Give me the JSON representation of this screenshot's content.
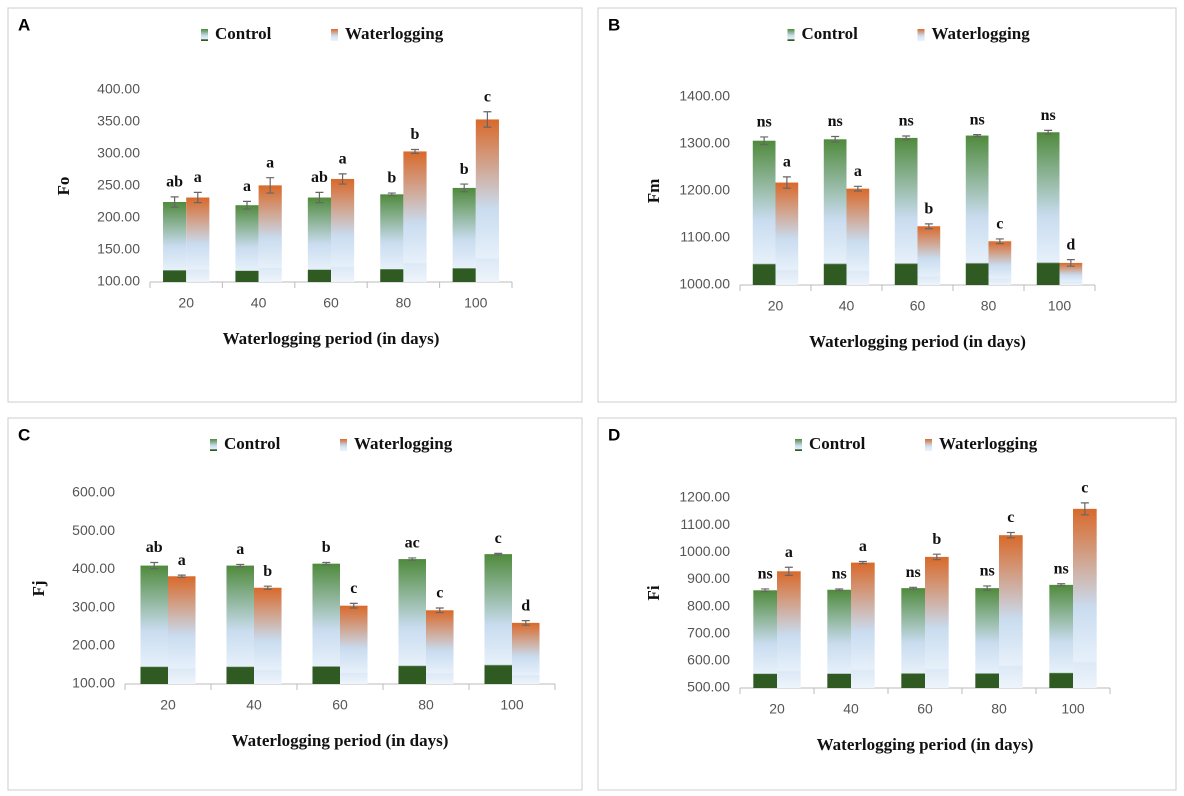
{
  "chart_data": [
    {
      "type": "bar",
      "panel": "A",
      "ylabel": "Fo",
      "xlabel": "Waterlogging period (in days)",
      "legend": "top",
      "categories": [
        "20",
        "40",
        "60",
        "80",
        "100"
      ],
      "ylim": [
        100,
        400
      ],
      "yticks": [
        {
          "value": 100,
          "label": "100.00"
        },
        {
          "value": 150,
          "label": "150.00"
        },
        {
          "value": 200,
          "label": "200.00"
        },
        {
          "value": 250,
          "label": "250.00"
        },
        {
          "value": 300,
          "label": "300.00"
        },
        {
          "value": 350,
          "label": "350.00"
        },
        {
          "value": 400,
          "label": "400.00"
        }
      ],
      "series": [
        {
          "name": "Control",
          "color": "#4f8a3c",
          "values": [
            225,
            220,
            232,
            237,
            247
          ],
          "errors": [
            8,
            6,
            8,
            2,
            6
          ],
          "annotations": [
            "ab",
            "a",
            "ab",
            "b",
            "b"
          ]
        },
        {
          "name": "Waterlogging",
          "color": "#d9692a",
          "values": [
            232,
            251,
            261,
            304,
            354
          ],
          "errors": [
            8,
            12,
            8,
            3,
            12
          ],
          "annotations": [
            "a",
            "a",
            "a",
            "b",
            "c"
          ]
        }
      ]
    },
    {
      "type": "bar",
      "panel": "B",
      "ylabel": "Fm",
      "xlabel": "Waterlogging period (in days)",
      "legend": "top",
      "categories": [
        "20",
        "40",
        "60",
        "80",
        "100"
      ],
      "ylim": [
        1000,
        1400
      ],
      "yticks": [
        {
          "value": 1000,
          "label": "1000.00"
        },
        {
          "value": 1100,
          "label": "1100.00"
        },
        {
          "value": 1200,
          "label": "1200.00"
        },
        {
          "value": 1300,
          "label": "1300.00"
        },
        {
          "value": 1400,
          "label": "1400.00"
        }
      ],
      "series": [
        {
          "name": "Control",
          "color": "#4f8a3c",
          "values": [
            1307,
            1310,
            1313,
            1318,
            1325
          ],
          "errors": [
            8,
            6,
            4,
            2,
            4
          ],
          "annotations": [
            "ns",
            "ns",
            "ns",
            "ns",
            "ns"
          ]
        },
        {
          "name": "Waterlogging",
          "color": "#d9692a",
          "values": [
            1218,
            1205,
            1125,
            1093,
            1047
          ],
          "errors": [
            12,
            5,
            5,
            5,
            7
          ],
          "annotations": [
            "a",
            "a",
            "b",
            "c",
            "d"
          ]
        }
      ]
    },
    {
      "type": "bar",
      "panel": "C",
      "ylabel": "Fj",
      "xlabel": "Waterlogging period (in days)",
      "legend": "top",
      "categories": [
        "20",
        "40",
        "60",
        "80",
        "100"
      ],
      "ylim": [
        100,
        600
      ],
      "yticks": [
        {
          "value": 100,
          "label": "100.00"
        },
        {
          "value": 200,
          "label": "200.00"
        },
        {
          "value": 300,
          "label": "300.00"
        },
        {
          "value": 400,
          "label": "400.00"
        },
        {
          "value": 500,
          "label": "500.00"
        },
        {
          "value": 600,
          "label": "600.00"
        }
      ],
      "series": [
        {
          "name": "Control",
          "color": "#4f8a3c",
          "values": [
            410,
            410,
            415,
            427,
            440
          ],
          "errors": [
            8,
            3,
            3,
            3,
            2
          ],
          "annotations": [
            "ab",
            "a",
            "b",
            "ac",
            "c"
          ]
        },
        {
          "name": "Waterlogging",
          "color": "#d9692a",
          "values": [
            382,
            352,
            305,
            293,
            260
          ],
          "errors": [
            3,
            4,
            6,
            6,
            6
          ],
          "annotations": [
            "a",
            "b",
            "c",
            "c",
            "d"
          ]
        }
      ]
    },
    {
      "type": "bar",
      "panel": "D",
      "ylabel": "Fi",
      "xlabel": "Waterlogging period (in days)",
      "legend": "top",
      "categories": [
        "20",
        "40",
        "60",
        "80",
        "100"
      ],
      "ylim": [
        500,
        1200
      ],
      "yticks": [
        {
          "value": 500,
          "label": "500.00"
        },
        {
          "value": 600,
          "label": "600.00"
        },
        {
          "value": 700,
          "label": "700.00"
        },
        {
          "value": 800,
          "label": "800.00"
        },
        {
          "value": 900,
          "label": "900.00"
        },
        {
          "value": 1000,
          "label": "1000.00"
        },
        {
          "value": 1100,
          "label": "1100.00"
        },
        {
          "value": 1200,
          "label": "1200.00"
        }
      ],
      "series": [
        {
          "name": "Control",
          "color": "#4f8a3c",
          "values": [
            860,
            862,
            868,
            868,
            880
          ],
          "errors": [
            5,
            3,
            3,
            8,
            4
          ],
          "annotations": [
            "ns",
            "ns",
            "ns",
            "ns",
            "ns"
          ]
        },
        {
          "name": "Waterlogging",
          "color": "#d9692a",
          "values": [
            930,
            962,
            983,
            1063,
            1160
          ],
          "errors": [
            15,
            4,
            10,
            10,
            22
          ],
          "annotations": [
            "a",
            "a",
            "b",
            "c",
            "c"
          ]
        }
      ]
    }
  ]
}
